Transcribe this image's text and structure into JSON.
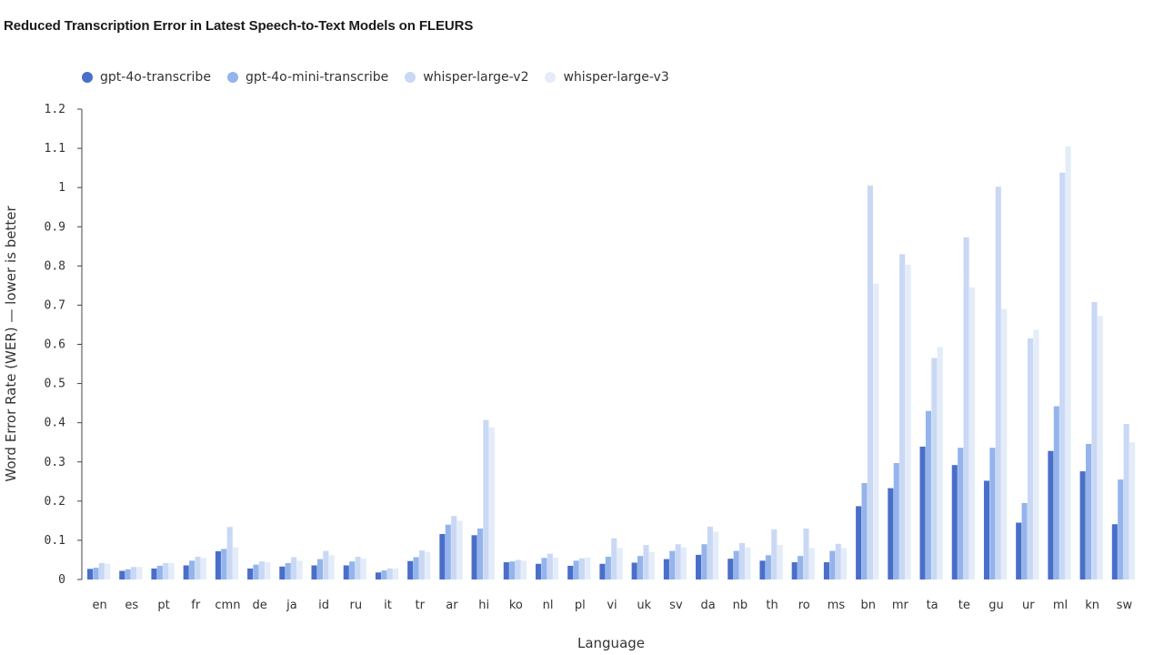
{
  "chart_data": {
    "type": "bar",
    "title": "Reduced Transcription Error in Latest Speech-to-Text Models on FLEURS",
    "xlabel": "Language",
    "ylabel": "Word Error Rate (WER) — lower is better",
    "ylim": [
      0,
      1.2
    ],
    "yticks": [
      "0",
      "0.1",
      "0.2",
      "0.3",
      "0.4",
      "0.5",
      "0.6",
      "0.7",
      "0.8",
      "0.9",
      "1",
      "1.1",
      "1.2"
    ],
    "legend_position": "top-left",
    "grid": false,
    "categories": [
      "en",
      "es",
      "pt",
      "fr",
      "cmn",
      "de",
      "ja",
      "id",
      "ru",
      "it",
      "tr",
      "ar",
      "hi",
      "ko",
      "nl",
      "pl",
      "vi",
      "uk",
      "sv",
      "da",
      "nb",
      "th",
      "ro",
      "ms",
      "bn",
      "mr",
      "ta",
      "te",
      "gu",
      "ur",
      "ml",
      "kn",
      "sw"
    ],
    "series": [
      {
        "name": "gpt-4o-transcribe",
        "color": "#4a6fc9",
        "values": [
          0.027,
          0.022,
          0.028,
          0.036,
          0.072,
          0.028,
          0.033,
          0.036,
          0.036,
          0.018,
          0.047,
          0.116,
          0.113,
          0.044,
          0.04,
          0.035,
          0.04,
          0.043,
          0.052,
          0.063,
          0.053,
          0.048,
          0.044,
          0.044,
          0.187,
          0.233,
          0.339,
          0.292,
          0.252,
          0.145,
          0.328,
          0.276,
          0.141
        ]
      },
      {
        "name": "gpt-4o-mini-transcribe",
        "color": "#94b4ec",
        "values": [
          0.03,
          0.026,
          0.035,
          0.048,
          0.078,
          0.038,
          0.042,
          0.052,
          0.046,
          0.023,
          0.057,
          0.14,
          0.13,
          0.046,
          0.055,
          0.048,
          0.058,
          0.06,
          0.073,
          0.09,
          0.073,
          0.062,
          0.06,
          0.073,
          0.246,
          0.297,
          0.43,
          0.336,
          0.336,
          0.195,
          0.442,
          0.346,
          0.255
        ]
      },
      {
        "name": "whisper-large-v2",
        "color": "#c9d8f4",
        "values": [
          0.042,
          0.032,
          0.042,
          0.058,
          0.134,
          0.046,
          0.057,
          0.073,
          0.058,
          0.028,
          0.074,
          0.162,
          0.407,
          0.05,
          0.066,
          0.054,
          0.105,
          0.088,
          0.09,
          0.135,
          0.093,
          0.128,
          0.13,
          0.091,
          1.005,
          0.83,
          0.565,
          0.873,
          1.002,
          0.615,
          1.038,
          0.708,
          0.397
        ]
      },
      {
        "name": "whisper-large-v3",
        "color": "#e4ecfa",
        "values": [
          0.04,
          0.032,
          0.042,
          0.055,
          0.082,
          0.044,
          0.048,
          0.062,
          0.053,
          0.028,
          0.07,
          0.15,
          0.388,
          0.048,
          0.056,
          0.056,
          0.08,
          0.07,
          0.082,
          0.122,
          0.082,
          0.088,
          0.08,
          0.08,
          0.755,
          0.803,
          0.593,
          0.745,
          0.69,
          0.637,
          1.105,
          0.672,
          0.35
        ]
      }
    ]
  }
}
